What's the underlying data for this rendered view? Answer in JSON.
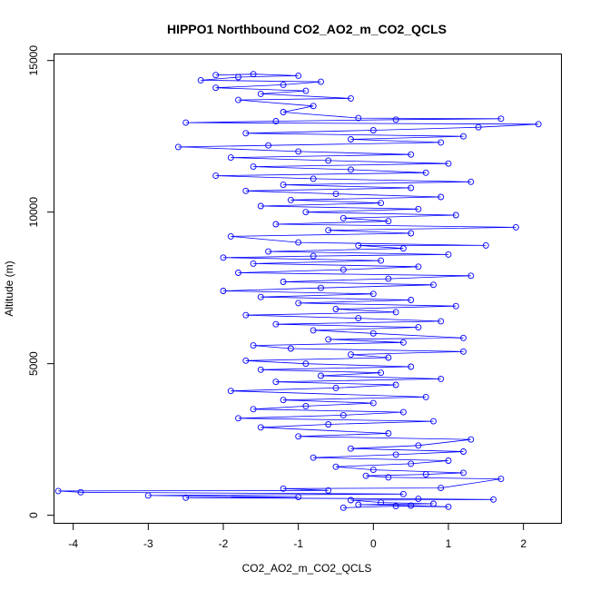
{
  "chart_data": {
    "type": "scatter",
    "title": "HIPPO1 Northbound CO2_AO2_m_CO2_QCLS",
    "xlabel": "CO2_AO2_m_CO2_QCLS",
    "ylabel": "Altitude (m)",
    "xlim": [
      -4.25,
      2.5
    ],
    "ylim": [
      -250,
      15200
    ],
    "xticks": [
      -4,
      -3,
      -2,
      -1,
      0,
      1,
      2
    ],
    "yticks": [
      0,
      5000,
      10000,
      15000
    ],
    "series_color": "#0000ff",
    "marker": "open-circle",
    "connected_by_lines": true,
    "grid": false,
    "series": [
      {
        "points": [
          [
            -0.4,
            250
          ],
          [
            0.3,
            300
          ],
          [
            1.0,
            280
          ],
          [
            0.5,
            320
          ],
          [
            -0.2,
            350
          ],
          [
            0.8,
            380
          ],
          [
            0.1,
            420
          ],
          [
            -0.3,
            500
          ],
          [
            1.6,
            520
          ],
          [
            0.6,
            540
          ],
          [
            -2.5,
            580
          ],
          [
            -1.0,
            600
          ],
          [
            -3.0,
            650
          ],
          [
            0.4,
            700
          ],
          [
            -3.9,
            760
          ],
          [
            -4.2,
            800
          ],
          [
            -0.6,
            820
          ],
          [
            -1.2,
            880
          ],
          [
            0.9,
            900
          ],
          [
            1.7,
            1200
          ],
          [
            0.2,
            1250
          ],
          [
            -0.1,
            1300
          ],
          [
            0.7,
            1350
          ],
          [
            1.2,
            1400
          ],
          [
            0.0,
            1500
          ],
          [
            -0.5,
            1600
          ],
          [
            0.5,
            1700
          ],
          [
            1.0,
            1800
          ],
          [
            -0.8,
            1900
          ],
          [
            0.3,
            2000
          ],
          [
            1.2,
            2100
          ],
          [
            -0.3,
            2200
          ],
          [
            0.6,
            2300
          ],
          [
            1.3,
            2500
          ],
          [
            -1.0,
            2600
          ],
          [
            0.2,
            2700
          ],
          [
            -1.5,
            2900
          ],
          [
            -0.6,
            3000
          ],
          [
            0.8,
            3100
          ],
          [
            -1.8,
            3200
          ],
          [
            -0.4,
            3300
          ],
          [
            0.4,
            3400
          ],
          [
            -1.6,
            3500
          ],
          [
            -0.9,
            3600
          ],
          [
            0.0,
            3700
          ],
          [
            -1.2,
            3800
          ],
          [
            0.7,
            3900
          ],
          [
            -1.9,
            4100
          ],
          [
            -0.5,
            4200
          ],
          [
            0.3,
            4300
          ],
          [
            -1.3,
            4400
          ],
          [
            0.9,
            4500
          ],
          [
            -0.7,
            4600
          ],
          [
            0.1,
            4700
          ],
          [
            -1.5,
            4800
          ],
          [
            0.5,
            4900
          ],
          [
            -0.9,
            5000
          ],
          [
            -1.7,
            5100
          ],
          [
            0.2,
            5200
          ],
          [
            -0.3,
            5300
          ],
          [
            1.2,
            5400
          ],
          [
            -1.1,
            5500
          ],
          [
            -1.6,
            5600
          ],
          [
            0.4,
            5700
          ],
          [
            -0.6,
            5800
          ],
          [
            1.2,
            5850
          ],
          [
            0.0,
            6000
          ],
          [
            -0.8,
            6100
          ],
          [
            0.6,
            6200
          ],
          [
            -1.3,
            6300
          ],
          [
            0.9,
            6400
          ],
          [
            -0.2,
            6500
          ],
          [
            -1.7,
            6600
          ],
          [
            0.3,
            6700
          ],
          [
            -0.5,
            6800
          ],
          [
            1.1,
            6900
          ],
          [
            -1.0,
            7000
          ],
          [
            0.5,
            7100
          ],
          [
            -1.5,
            7200
          ],
          [
            0.0,
            7300
          ],
          [
            -2.0,
            7400
          ],
          [
            -0.7,
            7500
          ],
          [
            0.8,
            7600
          ],
          [
            -1.2,
            7700
          ],
          [
            0.2,
            7800
          ],
          [
            1.3,
            7900
          ],
          [
            -1.8,
            8000
          ],
          [
            -0.4,
            8100
          ],
          [
            0.6,
            8200
          ],
          [
            -1.6,
            8300
          ],
          [
            0.1,
            8400
          ],
          [
            -2.0,
            8500
          ],
          [
            -0.8,
            8550
          ],
          [
            1.0,
            8600
          ],
          [
            -1.4,
            8700
          ],
          [
            0.4,
            8800
          ],
          [
            -0.2,
            8900
          ],
          [
            1.5,
            8900
          ],
          [
            -1.0,
            9000
          ],
          [
            -1.9,
            9200
          ],
          [
            0.5,
            9300
          ],
          [
            -0.6,
            9400
          ],
          [
            1.9,
            9500
          ],
          [
            -1.3,
            9600
          ],
          [
            0.2,
            9700
          ],
          [
            -0.4,
            9800
          ],
          [
            1.1,
            9900
          ],
          [
            -0.9,
            10000
          ],
          [
            0.6,
            10100
          ],
          [
            -1.5,
            10200
          ],
          [
            0.1,
            10300
          ],
          [
            -1.1,
            10400
          ],
          [
            0.9,
            10500
          ],
          [
            -0.5,
            10600
          ],
          [
            -1.7,
            10700
          ],
          [
            0.5,
            10800
          ],
          [
            -1.2,
            10900
          ],
          [
            1.3,
            11000
          ],
          [
            -0.8,
            11100
          ],
          [
            -2.1,
            11200
          ],
          [
            0.7,
            11300
          ],
          [
            -0.3,
            11400
          ],
          [
            -1.6,
            11500
          ],
          [
            1.0,
            11600
          ],
          [
            -0.6,
            11700
          ],
          [
            -1.9,
            11800
          ],
          [
            0.5,
            11900
          ],
          [
            -1.0,
            12000
          ],
          [
            -2.6,
            12150
          ],
          [
            -1.4,
            12200
          ],
          [
            0.9,
            12300
          ],
          [
            -0.3,
            12400
          ],
          [
            1.2,
            12500
          ],
          [
            -1.7,
            12600
          ],
          [
            0.0,
            12700
          ],
          [
            1.4,
            12800
          ],
          [
            2.2,
            12900
          ],
          [
            -2.5,
            12950
          ],
          [
            -1.3,
            13000
          ],
          [
            0.3,
            13050
          ],
          [
            1.7,
            13080
          ],
          [
            -0.2,
            13100
          ],
          [
            -1.2,
            13300
          ],
          [
            -0.8,
            13500
          ],
          [
            -1.8,
            13700
          ],
          [
            -0.3,
            13750
          ],
          [
            -1.5,
            13900
          ],
          [
            -0.9,
            14000
          ],
          [
            -2.1,
            14100
          ],
          [
            -1.2,
            14200
          ],
          [
            -0.7,
            14300
          ],
          [
            -2.3,
            14350
          ],
          [
            -1.8,
            14450
          ],
          [
            -1.0,
            14500
          ],
          [
            -1.6,
            14550
          ],
          [
            -2.1,
            14520
          ]
        ]
      }
    ]
  }
}
